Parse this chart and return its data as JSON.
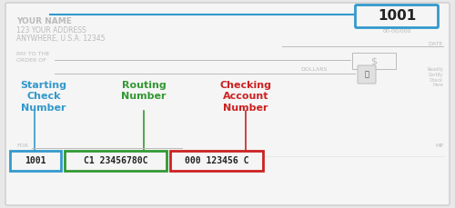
{
  "bg_color": "#e8e8e8",
  "check_bg": "#f5f5f5",
  "check_border": "#cccccc",
  "your_name": "YOUR NAME",
  "your_address1": "123 YOUR ADDRESS",
  "your_address2": "ANYWHERE, U.S.A. 12345",
  "name_color": "#bbbbbb",
  "check_number_box_text": "1001",
  "check_number_small": "00-00/000",
  "check_number_color": "#222222",
  "check_number_border": "#3399cc",
  "blue_line_color": "#3399cc",
  "pay_to_text": "PAY TO THE\nORDER OF",
  "dollar_sign": "$",
  "date_label": "DATE",
  "dollars_label": "DOLLARS",
  "for_label": "FOR",
  "mp_label": "MP",
  "label1_text": "Starting\nCheck\nNumber",
  "label1_color": "#3399cc",
  "label2_text": "Routing\nNumber",
  "label2_color": "#339933",
  "label3_text": "Checking\nAccount\nNumber",
  "label3_color": "#cc2222",
  "box1_text": "1001",
  "box1_color": "#3399cc",
  "box2_text": "C1 23456780C",
  "box2_color": "#339933",
  "box3_text": "000 123456 C",
  "box3_color": "#cc2222",
  "lock_text": "Readily\nCertify\nCheck\nHere",
  "gray": "#aaaaaa"
}
